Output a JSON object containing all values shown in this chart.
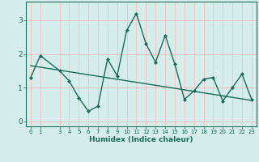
{
  "xlabel": "Humidex (Indice chaleur)",
  "bg_color": "#d5eeec",
  "grid_color": "#f0c8c8",
  "line_color": "#1a6b5a",
  "x_data": [
    0,
    1,
    3,
    4,
    5,
    6,
    7,
    8,
    9,
    10,
    11,
    12,
    13,
    14,
    15,
    16,
    17,
    18,
    19,
    20,
    21,
    22,
    23
  ],
  "y_data": [
    1.3,
    1.95,
    1.5,
    1.2,
    0.7,
    0.3,
    0.45,
    1.85,
    1.35,
    2.7,
    3.2,
    2.3,
    1.75,
    2.55,
    1.7,
    0.65,
    0.9,
    1.25,
    1.3,
    0.6,
    1.0,
    1.4,
    0.65
  ],
  "trend_x": [
    0,
    23
  ],
  "trend_y": [
    1.65,
    0.62
  ],
  "ylim": [
    -0.15,
    3.55
  ],
  "xlim": [
    -0.5,
    23.5
  ],
  "yticks": [
    0,
    1,
    2,
    3
  ],
  "xticks": [
    0,
    1,
    3,
    4,
    5,
    6,
    7,
    8,
    9,
    10,
    11,
    12,
    13,
    14,
    15,
    16,
    17,
    18,
    19,
    20,
    21,
    22,
    23
  ]
}
